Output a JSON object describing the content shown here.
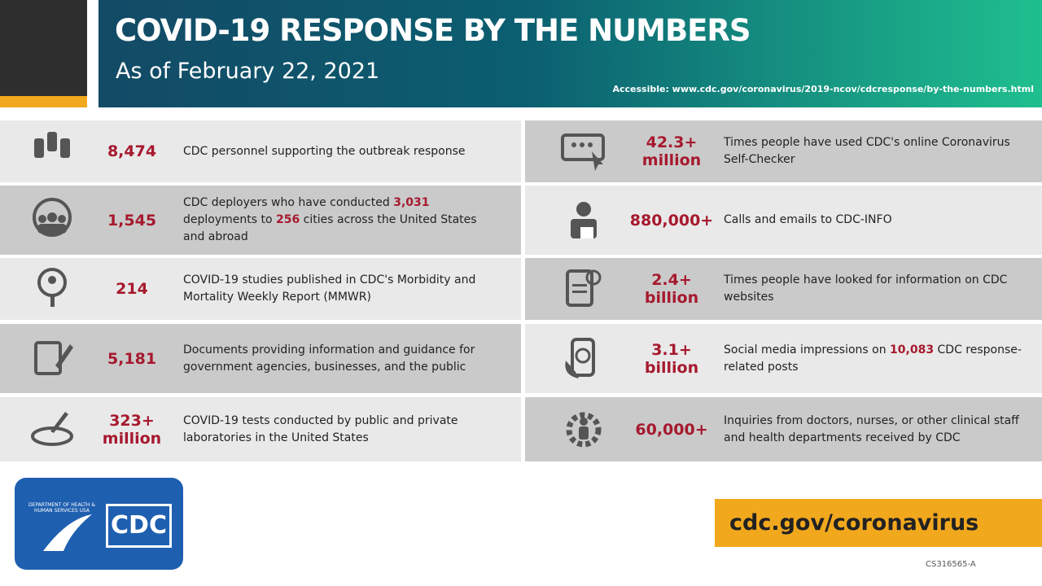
{
  "header": {
    "title": "COVID-19 RESPONSE BY THE NUMBERS",
    "subtitle": "As of February 22, 2021",
    "link": "Accessible: www.cdc.gov/coronavirus/2019-ncov/cdcresponse/by-the-numbers.html"
  },
  "left": [
    {
      "value": "8,474",
      "description": [
        "CDC personnel supporting the outbreak response"
      ]
    },
    {
      "value": "1,545",
      "description": [
        "CDC deployers who have conducted ",
        "3,031",
        " deployments to ",
        "256",
        " cities across the United States and abroad"
      ]
    },
    {
      "value": "214",
      "description": [
        "COVID-19 studies published in CDC's Morbidity and Mortality Weekly Report (MMWR)"
      ]
    },
    {
      "value": "5,181",
      "description": [
        "Documents providing information and guidance for government agencies, businesses, and the public"
      ]
    },
    {
      "value": "323+ million",
      "description": [
        "COVID-19 tests conducted by public and private laboratories in the United States"
      ]
    }
  ],
  "right": [
    {
      "value": "42.3+ million",
      "description": [
        "Times people have used CDC's online Coronavirus Self-Checker"
      ]
    },
    {
      "value": "880,000+",
      "description": [
        "Calls and emails to CDC-INFO"
      ]
    },
    {
      "value": "2.4+ billion",
      "description": [
        "Times people have looked for information  on CDC websites"
      ]
    },
    {
      "value": "3.1+ billion",
      "description": [
        "Social media impressions on ",
        "10,083",
        " CDC response-related posts"
      ]
    },
    {
      "value": "60,000+",
      "description": [
        "Inquiries from doctors, nurses, or other clinical staff and health departments received by CDC"
      ]
    }
  ],
  "footer": {
    "logo": "CDC",
    "seal": "DEPARTMENT OF HEALTH & HUMAN SERVICES USA",
    "url": "cdc.gov/coronavirus",
    "code": "CS316565-A"
  }
}
